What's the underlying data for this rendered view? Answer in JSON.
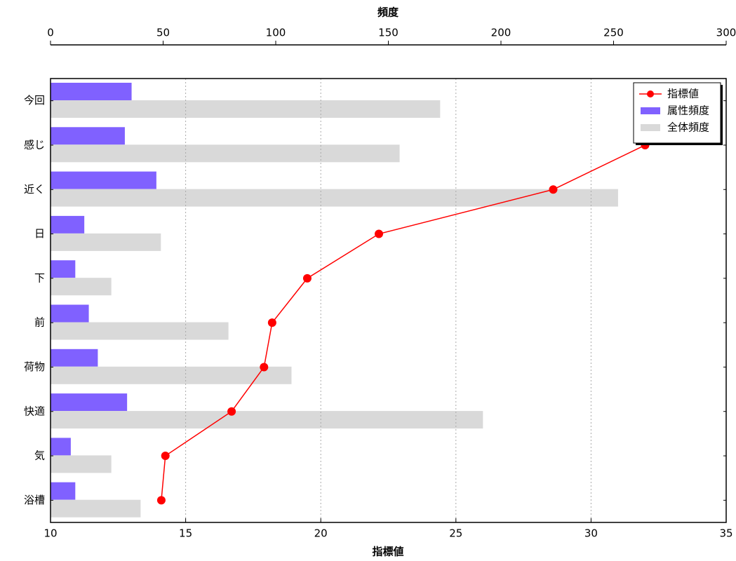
{
  "chart_data": {
    "type": "bar",
    "orientation": "horizontal",
    "categories": [
      "今回",
      "感じ",
      "近く",
      "日",
      "下",
      "前",
      "荷物",
      "快適",
      "気",
      "浴槽"
    ],
    "xlabel": "指標値",
    "x2label": "頻度",
    "xlim": [
      10,
      35
    ],
    "xticks": [
      10,
      15,
      20,
      25,
      30,
      35
    ],
    "x2lim": [
      0,
      300
    ],
    "x2ticks": [
      0,
      50,
      100,
      150,
      200,
      250,
      300
    ],
    "grid": true,
    "legend": "upper right",
    "series": [
      {
        "name": "指標値",
        "type": "line",
        "axis": "x",
        "color": "#ff0000",
        "values": [
          34.2,
          32.0,
          28.6,
          22.15,
          19.5,
          18.2,
          17.9,
          16.7,
          14.25,
          14.1
        ]
      },
      {
        "name": "属性頻度",
        "type": "bar",
        "axis": "x2",
        "color": "#8061ff",
        "values": [
          36,
          33,
          47,
          15,
          11,
          17,
          21,
          34,
          9,
          11
        ]
      },
      {
        "name": "全体頻度",
        "type": "bar",
        "axis": "x2",
        "color": "#d9d9d9",
        "values": [
          173,
          155,
          252,
          49,
          27,
          79,
          107,
          192,
          27,
          40
        ]
      }
    ]
  }
}
